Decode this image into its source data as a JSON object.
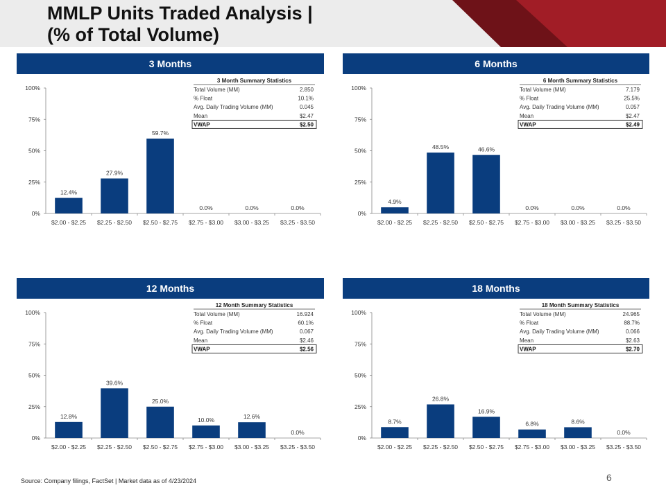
{
  "title_line1": "MMLP Units Traded Analysis |",
  "title_line2": "(% of Total Volume)",
  "footer": {
    "source": "Source: Company filings, FactSet | Market data as of 4/23/2024",
    "page": "6"
  },
  "colors": {
    "bar": "#0a3d7e",
    "panel_header": "#0a3d7e",
    "accent_red": "#a11d26"
  },
  "chart_data": [
    {
      "type": "bar",
      "title": "3 Months",
      "categories": [
        "$2.00 - $2.25",
        "$2.25 - $2.50",
        "$2.50 - $2.75",
        "$2.75 - $3.00",
        "$3.00 - $3.25",
        "$3.25 - $3.50"
      ],
      "values": [
        12.4,
        27.9,
        59.7,
        0.0,
        0.0,
        0.0
      ],
      "value_labels": [
        "12.4%",
        "27.9%",
        "59.7%",
        "0.0%",
        "0.0%",
        "0.0%"
      ],
      "ylim": [
        0,
        100
      ],
      "yticks": [
        "0%",
        "25%",
        "50%",
        "75%",
        "100%"
      ],
      "stats": {
        "title": "3 Month Summary Statistics",
        "rows": [
          [
            "Total Volume (MM)",
            "2.850"
          ],
          [
            "% Float",
            "10.1%"
          ],
          [
            "Avg. Daily Trading Volume (MM)",
            "0.045"
          ],
          [
            "Mean",
            "$2.47"
          ],
          [
            "VWAP",
            "$2.50"
          ]
        ]
      }
    },
    {
      "type": "bar",
      "title": "6 Months",
      "categories": [
        "$2.00 - $2.25",
        "$2.25 - $2.50",
        "$2.50 - $2.75",
        "$2.75 - $3.00",
        "$3.00 - $3.25",
        "$3.25 - $3.50"
      ],
      "values": [
        4.9,
        48.5,
        46.6,
        0.0,
        0.0,
        0.0
      ],
      "value_labels": [
        "4.9%",
        "48.5%",
        "46.6%",
        "0.0%",
        "0.0%",
        "0.0%"
      ],
      "ylim": [
        0,
        100
      ],
      "yticks": [
        "0%",
        "25%",
        "50%",
        "75%",
        "100%"
      ],
      "stats": {
        "title": "6 Month Summary Statistics",
        "rows": [
          [
            "Total Volume (MM)",
            "7.179"
          ],
          [
            "% Float",
            "25.5%"
          ],
          [
            "Avg. Daily Trading Volume (MM)",
            "0.057"
          ],
          [
            "Mean",
            "$2.47"
          ],
          [
            "VWAP",
            "$2.49"
          ]
        ]
      }
    },
    {
      "type": "bar",
      "title": "12 Months",
      "categories": [
        "$2.00 - $2.25",
        "$2.25 - $2.50",
        "$2.50 - $2.75",
        "$2.75 - $3.00",
        "$3.00 - $3.25",
        "$3.25 - $3.50"
      ],
      "values": [
        12.8,
        39.6,
        25.0,
        10.0,
        12.6,
        0.0
      ],
      "value_labels": [
        "12.8%",
        "39.6%",
        "25.0%",
        "10.0%",
        "12.6%",
        "0.0%"
      ],
      "ylim": [
        0,
        100
      ],
      "yticks": [
        "0%",
        "25%",
        "50%",
        "75%",
        "100%"
      ],
      "stats": {
        "title": "12 Month Summary Statistics",
        "rows": [
          [
            "Total Volume (MM)",
            "16.924"
          ],
          [
            "% Float",
            "60.1%"
          ],
          [
            "Avg. Daily Trading Volume (MM)",
            "0.067"
          ],
          [
            "Mean",
            "$2.46"
          ],
          [
            "VWAP",
            "$2.56"
          ]
        ]
      }
    },
    {
      "type": "bar",
      "title": "18 Months",
      "categories": [
        "$2.00 - $2.25",
        "$2.25 - $2.50",
        "$2.50 - $2.75",
        "$2.75 - $3.00",
        "$3.00 - $3.25",
        "$3.25 - $3.50"
      ],
      "values": [
        8.7,
        26.8,
        16.9,
        6.8,
        8.6,
        0.0
      ],
      "value_labels": [
        "8.7%",
        "26.8%",
        "16.9%",
        "6.8%",
        "8.6%",
        "0.0%"
      ],
      "ylim": [
        0,
        100
      ],
      "yticks": [
        "0%",
        "25%",
        "50%",
        "75%",
        "100%"
      ],
      "stats": {
        "title": "18 Month Summary Statistics",
        "rows": [
          [
            "Total Volume (MM)",
            "24.965"
          ],
          [
            "% Float",
            "88.7%"
          ],
          [
            "Avg. Daily Trading Volume (MM)",
            "0.066"
          ],
          [
            "Mean",
            "$2.63"
          ],
          [
            "VWAP",
            "$2.70"
          ]
        ]
      }
    }
  ]
}
